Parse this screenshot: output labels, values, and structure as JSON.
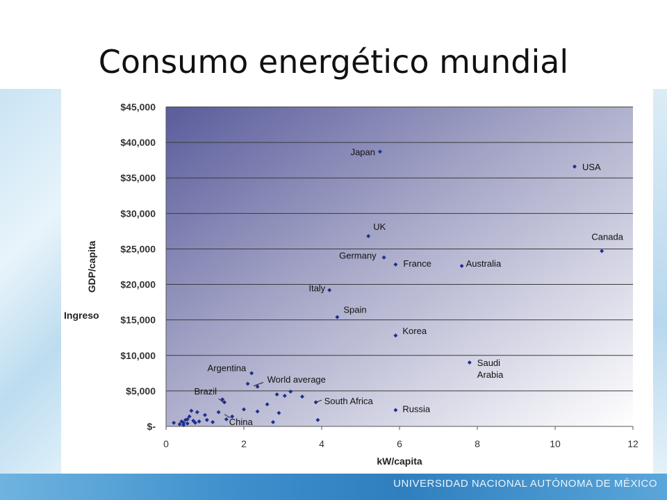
{
  "slide": {
    "title": "Consumo energético mundial",
    "overlay_label": "Ingreso",
    "footer": "UNIVERSIDAD NACIONAL AUTÓNOMA DE MÉXICO"
  },
  "chart_data": {
    "type": "scatter",
    "xlabel": "kW/capita",
    "ylabel": "GDP/capita",
    "xlim": [
      0,
      12
    ],
    "ylim": [
      0,
      45000
    ],
    "x_ticks": [
      0,
      2,
      4,
      6,
      8,
      10,
      12
    ],
    "y_ticks": [
      0,
      5000,
      10000,
      15000,
      20000,
      25000,
      30000,
      35000,
      40000,
      45000
    ],
    "y_tick_labels": [
      "$-",
      "$5,000",
      "$10,000",
      "$15,000",
      "$20,000",
      "$25,000",
      "$30,000",
      "$35,000",
      "$40,000",
      "$45,000"
    ],
    "grid": "horizontal",
    "marker_color": "#1f2f8f",
    "labeled_points": [
      {
        "label": "Japan",
        "x": 5.5,
        "y": 38700
      },
      {
        "label": "USA",
        "x": 10.5,
        "y": 36600
      },
      {
        "label": "UK",
        "x": 5.2,
        "y": 26800
      },
      {
        "label": "Canada",
        "x": 11.2,
        "y": 24700
      },
      {
        "label": "Germany",
        "x": 5.6,
        "y": 23800
      },
      {
        "label": "France",
        "x": 5.9,
        "y": 22800
      },
      {
        "label": "Australia",
        "x": 7.6,
        "y": 22600
      },
      {
        "label": "Italy",
        "x": 4.2,
        "y": 19200
      },
      {
        "label": "Spain",
        "x": 4.4,
        "y": 15400
      },
      {
        "label": "Korea",
        "x": 5.9,
        "y": 12800
      },
      {
        "label": "Saudi Arabia",
        "x": 7.8,
        "y": 9000
      },
      {
        "label": "Argentina",
        "x": 2.2,
        "y": 7500
      },
      {
        "label": "World average",
        "x": 2.35,
        "y": 5600
      },
      {
        "label": "Brazil",
        "x": 1.5,
        "y": 3400
      },
      {
        "label": "South Africa",
        "x": 3.85,
        "y": 3400
      },
      {
        "label": "Russia",
        "x": 5.9,
        "y": 2300
      },
      {
        "label": "China",
        "x": 1.55,
        "y": 1000
      }
    ],
    "other_points": [
      [
        2.1,
        6000
      ],
      [
        0.2,
        500
      ],
      [
        0.35,
        300
      ],
      [
        0.4,
        700
      ],
      [
        0.45,
        200
      ],
      [
        0.5,
        900
      ],
      [
        0.55,
        400
      ],
      [
        0.6,
        1400
      ],
      [
        0.65,
        2200
      ],
      [
        0.7,
        800
      ],
      [
        0.75,
        500
      ],
      [
        0.8,
        2000
      ],
      [
        0.85,
        700
      ],
      [
        1.0,
        1600
      ],
      [
        1.05,
        900
      ],
      [
        1.2,
        600
      ],
      [
        1.35,
        2000
      ],
      [
        1.45,
        3800
      ],
      [
        1.7,
        1400
      ],
      [
        2.0,
        2400
      ],
      [
        2.35,
        2100
      ],
      [
        2.6,
        3100
      ],
      [
        2.75,
        600
      ],
      [
        2.85,
        4500
      ],
      [
        2.9,
        1900
      ],
      [
        3.05,
        4300
      ],
      [
        3.2,
        4900
      ],
      [
        3.5,
        4200
      ],
      [
        3.9,
        900
      ],
      [
        0.45,
        500
      ],
      [
        0.55,
        1000
      ]
    ]
  }
}
